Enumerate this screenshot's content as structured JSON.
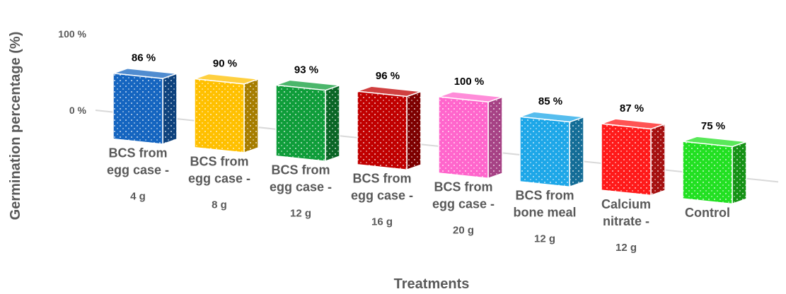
{
  "chart_data": {
    "type": "bar",
    "xlabel": "Treatments",
    "ylabel": "Germination percentage (%)",
    "y_ticks": [
      "0 %",
      "100 %"
    ],
    "ylim": [
      0,
      100
    ],
    "categories": [
      {
        "lines": [
          "BCS from",
          "egg case -"
        ],
        "sub": "4 g"
      },
      {
        "lines": [
          "BCS from",
          "egg case -"
        ],
        "sub": "8 g"
      },
      {
        "lines": [
          "BCS from",
          "egg case -"
        ],
        "sub": "12 g"
      },
      {
        "lines": [
          "BCS from",
          "egg case -"
        ],
        "sub": "16 g"
      },
      {
        "lines": [
          "BCS from",
          "egg case -"
        ],
        "sub": "20 g"
      },
      {
        "lines": [
          "BCS from",
          "bone meal"
        ],
        "sub": "12 g"
      },
      {
        "lines": [
          "Calcium",
          "nitrate -"
        ],
        "sub": "12 g"
      },
      {
        "lines": [
          "Control"
        ],
        "sub": ""
      }
    ],
    "values": [
      86,
      90,
      93,
      96,
      100,
      85,
      87,
      75
    ],
    "data_labels": [
      "86 %",
      "90 %",
      "93 %",
      "96 %",
      "100 %",
      "85 %",
      "87 %",
      "75 %"
    ],
    "colors": [
      "#1565c0",
      "#ffc000",
      "#0f9d3a",
      "#c00000",
      "#ff66cc",
      "#1ea7e8",
      "#ff1a1a",
      "#22e022"
    ],
    "grid": false,
    "legend": "none"
  }
}
